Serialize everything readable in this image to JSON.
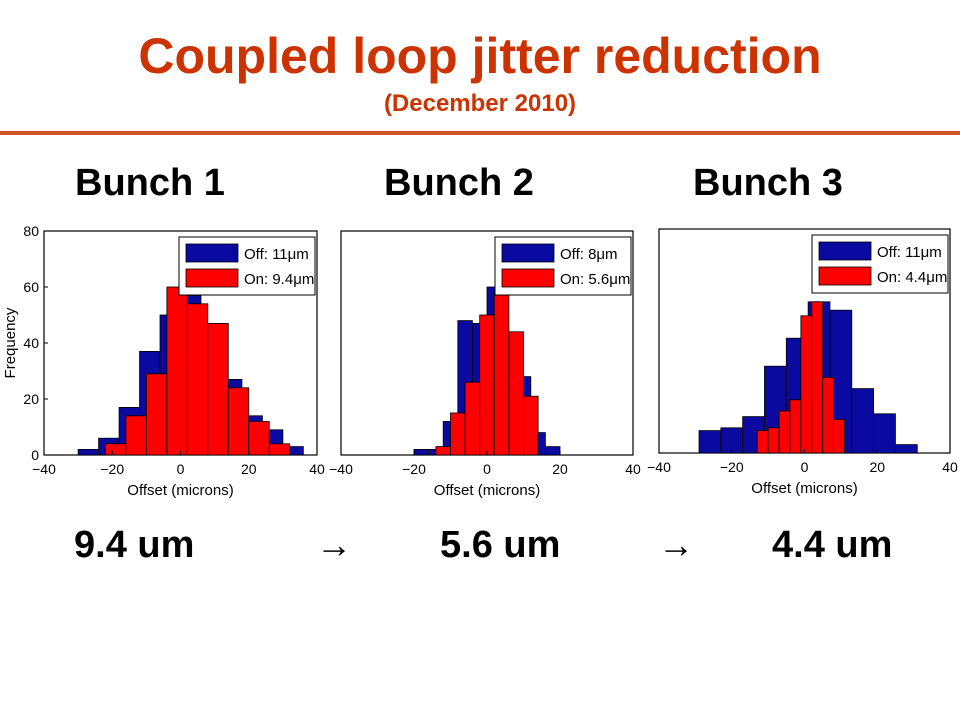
{
  "slide": {
    "title": "Coupled loop jitter reduction",
    "subtitle": "(December 2010)",
    "results": [
      "9.4 um",
      "5.6 um",
      "4.4 um"
    ],
    "arrow": "→"
  },
  "colors": {
    "title": "#cc3300",
    "off": "#0a0aa0",
    "on": "#ff0000"
  },
  "chart_data": [
    {
      "type": "bar",
      "title": "Bunch 1",
      "xlabel": "Offset (microns)",
      "ylabel": "Frequency",
      "xlim": [
        -40,
        40
      ],
      "ylim": [
        0,
        80
      ],
      "xticks": [
        -40,
        -20,
        0,
        20,
        40
      ],
      "yticks": [
        0,
        20,
        40,
        60,
        80
      ],
      "legend_position": "top-right",
      "series": [
        {
          "name": "Off: 11μm",
          "bins": [
            [
              -30,
              -24,
              2
            ],
            [
              -24,
              -18,
              6
            ],
            [
              -18,
              -12,
              17
            ],
            [
              -12,
              -6,
              37
            ],
            [
              -6,
              0,
              50
            ],
            [
              0,
              6,
              57
            ],
            [
              6,
              12,
              37
            ],
            [
              12,
              18,
              27
            ],
            [
              18,
              24,
              14
            ],
            [
              24,
              30,
              9
            ],
            [
              30,
              36,
              3
            ]
          ]
        },
        {
          "name": "On: 9.4μm",
          "bins": [
            [
              -22,
              -16,
              4
            ],
            [
              -16,
              -10,
              14
            ],
            [
              -10,
              -4,
              29
            ],
            [
              -4,
              2,
              60
            ],
            [
              2,
              8,
              54
            ],
            [
              8,
              14,
              47
            ],
            [
              14,
              20,
              24
            ],
            [
              20,
              26,
              12
            ],
            [
              26,
              32,
              4
            ]
          ]
        }
      ]
    },
    {
      "type": "bar",
      "title": "Bunch 2",
      "xlabel": "Offset (microns)",
      "ylabel": "",
      "xlim": [
        -40,
        40
      ],
      "ylim": [
        0,
        80
      ],
      "xticks": [
        -40,
        -20,
        0,
        20,
        40
      ],
      "yticks": [],
      "legend_position": "top-right",
      "series": [
        {
          "name": "Off: 8μm",
          "bins": [
            [
              -20,
              -16,
              2
            ],
            [
              -16,
              -12,
              2
            ],
            [
              -12,
              -8,
              12
            ],
            [
              -8,
              -4,
              48
            ],
            [
              -4,
              0,
              47
            ],
            [
              0,
              4,
              60
            ],
            [
              4,
              8,
              37
            ],
            [
              8,
              12,
              28
            ],
            [
              12,
              16,
              8
            ],
            [
              16,
              20,
              3
            ]
          ]
        },
        {
          "name": "On: 5.6μm",
          "bins": [
            [
              -14,
              -10,
              3
            ],
            [
              -10,
              -6,
              15
            ],
            [
              -6,
              -2,
              26
            ],
            [
              -2,
              2,
              50
            ],
            [
              2,
              6,
              58
            ],
            [
              6,
              10,
              44
            ],
            [
              10,
              14,
              21
            ]
          ]
        }
      ]
    },
    {
      "type": "bar",
      "title": "Bunch 3",
      "xlabel": "Offset (microns)",
      "ylabel": "",
      "xlim": [
        -40,
        40
      ],
      "ylim": [
        0,
        80
      ],
      "xticks": [
        -40,
        -20,
        0,
        20,
        40
      ],
      "yticks": [],
      "legend_position": "top-right",
      "series": [
        {
          "name": "Off: 11μm",
          "bins": [
            [
              -29,
              -23,
              8
            ],
            [
              -23,
              -17,
              9
            ],
            [
              -17,
              -11,
              13
            ],
            [
              -11,
              -5,
              31
            ],
            [
              -5,
              1,
              41
            ],
            [
              1,
              7,
              54
            ],
            [
              7,
              13,
              51
            ],
            [
              13,
              19,
              23
            ],
            [
              19,
              25,
              14
            ],
            [
              25,
              31,
              3
            ]
          ]
        },
        {
          "name": "On: 4.4μm",
          "bins": [
            [
              -13,
              -10,
              8
            ],
            [
              -10,
              -7,
              9
            ],
            [
              -7,
              -4,
              15
            ],
            [
              -4,
              -1,
              19
            ],
            [
              -1,
              2,
              49
            ],
            [
              2,
              5,
              54
            ],
            [
              5,
              8,
              27
            ],
            [
              8,
              11,
              12
            ]
          ]
        }
      ]
    }
  ]
}
